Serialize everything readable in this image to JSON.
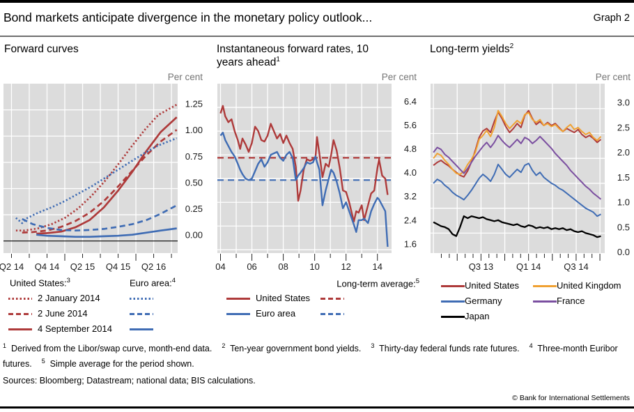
{
  "header": {
    "title": "Bond markets anticipate divergence in the monetary policy outlook...",
    "graph_label": "Graph 2"
  },
  "panels": [
    {
      "title": "Forward curves",
      "title_sup": "",
      "unit": "Per cent"
    },
    {
      "title": "Instantaneous forward rates, 10 years ahead",
      "title_sup": "1",
      "unit": "Per cent"
    },
    {
      "title": "Long-term yields",
      "title_sup": "2",
      "unit": "Per cent"
    }
  ],
  "legends": {
    "panel1": {
      "col1_header": "United States:",
      "col1_sup": "3",
      "col2_header": "Euro area:",
      "col2_sup": "4",
      "items": [
        "2 January 2014",
        "2 June 2014",
        "4 September 2014"
      ]
    },
    "panel2": {
      "avg_header": "Long-term average:",
      "avg_sup": "5",
      "items": [
        "United States",
        "Euro area"
      ]
    },
    "panel3": {
      "items": [
        "United States",
        "United Kingdom",
        "Germany",
        "France",
        "Japan"
      ]
    }
  },
  "footnotes": [
    {
      "sup": "1",
      "text": "Derived from the Libor/swap curve, month-end data."
    },
    {
      "sup": "2",
      "text": "Ten-year government bond yields."
    },
    {
      "sup": "3",
      "text": "Thirty-day federal funds rate futures."
    },
    {
      "sup": "4",
      "text": "Three-month Euribor futures."
    },
    {
      "sup": "5",
      "text": "Simple average for the period shown."
    }
  ],
  "sources": "Sources: Bloomberg; Datastream; national data; BIS calculations.",
  "copyright": "© Bank for International Settlements",
  "colors": {
    "us_red": "#ae3a3a",
    "eu_blue": "#3f6cb4",
    "uk_orange": "#f0a132",
    "fr_purple": "#7b4fa0",
    "jp_black": "#000000",
    "plot_bg": "#dcdcdc",
    "grid": "#ffffff"
  },
  "chart_data": [
    {
      "type": "line",
      "title": "Forward curves",
      "ylabel": "Per cent",
      "ylim": [
        -0.115,
        1.5
      ],
      "yticks": [
        0.0,
        0.25,
        0.5,
        0.75,
        1.0,
        1.25
      ],
      "ytick_decimals": 2,
      "zero_line": 0.0,
      "xlim": [
        -0.45,
        9.35
      ],
      "xgrid": [
        0,
        1,
        2,
        3,
        4,
        5,
        6,
        7,
        8,
        9
      ],
      "xticks": {
        "start": 0,
        "step": 1,
        "count": 10,
        "long": [
          3,
          7
        ]
      },
      "xtick_labels": [
        {
          "pos": 0,
          "text": "Q2 14"
        },
        {
          "pos": 2,
          "text": "Q4 14"
        },
        {
          "pos": 4,
          "text": "Q2 15"
        },
        {
          "pos": 6,
          "text": "Q4 15"
        },
        {
          "pos": 8,
          "text": "Q2 16"
        }
      ],
      "stroke_w": 2.7,
      "series": [
        {
          "name": "United States — 2 January 2014",
          "color": "us_red",
          "dash": "dotted",
          "x": [
            0.25,
            0.75,
            1.5,
            2.25,
            3,
            3.75,
            4.5,
            5.25,
            6,
            6.75,
            7.5,
            8.25,
            9.3
          ],
          "y": [
            0.1,
            0.1,
            0.12,
            0.16,
            0.22,
            0.31,
            0.43,
            0.57,
            0.73,
            0.9,
            1.06,
            1.2,
            1.3
          ]
        },
        {
          "name": "United States — 2 June 2014",
          "color": "us_red",
          "dash": "dashed",
          "x": [
            0.6,
            1.2,
            2,
            2.8,
            3.6,
            4.4,
            5.2,
            6,
            6.8,
            7.6,
            8.4,
            9.3
          ],
          "y": [
            0.08,
            0.085,
            0.1,
            0.135,
            0.19,
            0.27,
            0.38,
            0.52,
            0.67,
            0.82,
            0.95,
            1.06
          ]
        },
        {
          "name": "United States — 4 September 2014",
          "color": "us_red",
          "dash": "solid",
          "x": [
            1.4,
            2,
            2.8,
            3.6,
            4.4,
            5.2,
            6,
            6.8,
            7.6,
            8.4,
            9.3
          ],
          "y": [
            0.07,
            0.075,
            0.09,
            0.13,
            0.2,
            0.32,
            0.48,
            0.66,
            0.86,
            1.04,
            1.18
          ]
        },
        {
          "name": "Euro area — 2 January 2014",
          "color": "eu_blue",
          "dash": "dotted",
          "x": [
            0.25,
            0.6,
            0.9,
            1.5,
            2.25,
            3,
            3.75,
            4.5,
            5.25,
            6,
            6.75,
            7.5,
            8.25,
            9.3
          ],
          "y": [
            0.22,
            0.17,
            0.22,
            0.27,
            0.32,
            0.38,
            0.45,
            0.52,
            0.6,
            0.68,
            0.76,
            0.84,
            0.91,
            0.98
          ]
        },
        {
          "name": "Euro area — 2 June 2014",
          "color": "eu_blue",
          "dash": "dashed",
          "x": [
            0.6,
            1.2,
            2,
            2.8,
            3.6,
            4.4,
            5.2,
            6,
            6.8,
            7.6,
            8.4,
            9.3
          ],
          "y": [
            0.21,
            0.16,
            0.125,
            0.105,
            0.1,
            0.105,
            0.115,
            0.135,
            0.16,
            0.2,
            0.26,
            0.34
          ]
        },
        {
          "name": "Euro area — 4 September 2014",
          "color": "eu_blue",
          "dash": "solid",
          "x": [
            1.4,
            2,
            2.8,
            3.6,
            4.4,
            5.2,
            6,
            6.8,
            7.6,
            8.4,
            9.3
          ],
          "y": [
            0.06,
            0.05,
            0.045,
            0.04,
            0.04,
            0.045,
            0.05,
            0.06,
            0.08,
            0.1,
            0.12
          ]
        }
      ]
    },
    {
      "type": "line",
      "title": "Instantaneous forward rates, 10 years ahead",
      "ylabel": "Per cent",
      "ylim": [
        1.49,
        7.2
      ],
      "yticks": [
        1.6,
        2.4,
        3.2,
        4.0,
        4.8,
        5.6,
        6.4
      ],
      "ytick_decimals": 1,
      "xlim": [
        2003.8,
        2014.9
      ],
      "xgrid": [
        2004,
        2005,
        2006,
        2007,
        2008,
        2009,
        2010,
        2011,
        2012,
        2013,
        2014
      ],
      "xticks": {
        "start": 2004,
        "step": 1,
        "count": 11,
        "long": [
          2004,
          2006,
          2008,
          2010,
          2012,
          2014
        ]
      },
      "xtick_labels": [
        {
          "pos": 2004,
          "text": "04"
        },
        {
          "pos": 2006,
          "text": "06"
        },
        {
          "pos": 2008,
          "text": "08"
        },
        {
          "pos": 2010,
          "text": "10"
        },
        {
          "pos": 2012,
          "text": "12"
        },
        {
          "pos": 2014,
          "text": "14"
        }
      ],
      "stroke_w": 2.4,
      "hlines": [
        {
          "name": "Long-term average — United States",
          "y": 4.7,
          "color": "us_red"
        },
        {
          "name": "Long-term average — Euro area",
          "y": 3.95,
          "color": "eu_blue"
        }
      ],
      "x": [
        2004.0,
        2004.15,
        2004.3,
        2004.5,
        2004.7,
        2004.9,
        2005.1,
        2005.25,
        2005.4,
        2005.6,
        2005.8,
        2006.0,
        2006.2,
        2006.4,
        2006.6,
        2006.8,
        2007.0,
        2007.2,
        2007.4,
        2007.6,
        2007.8,
        2008.0,
        2008.2,
        2008.4,
        2008.6,
        2008.8,
        2008.95,
        2009.1,
        2009.3,
        2009.5,
        2009.7,
        2009.9,
        2010.05,
        2010.15,
        2010.3,
        2010.5,
        2010.7,
        2010.9,
        2011.05,
        2011.2,
        2011.4,
        2011.6,
        2011.8,
        2012.0,
        2012.2,
        2012.5,
        2012.65,
        2012.8,
        2013.0,
        2013.15,
        2013.4,
        2013.6,
        2013.8,
        2014.0,
        2014.1,
        2014.3,
        2014.5,
        2014.65
      ],
      "series": [
        {
          "name": "United States",
          "color": "us_red",
          "dash": "solid",
          "y": [
            6.2,
            6.45,
            6.1,
            5.9,
            6.0,
            5.6,
            5.3,
            5.0,
            5.35,
            5.15,
            4.9,
            5.2,
            5.75,
            5.6,
            5.3,
            5.25,
            5.45,
            5.85,
            5.6,
            5.35,
            5.5,
            5.2,
            5.45,
            5.2,
            5.0,
            4.4,
            3.25,
            3.6,
            4.3,
            4.65,
            4.6,
            4.65,
            4.7,
            5.4,
            4.85,
            4.05,
            4.5,
            4.4,
            4.8,
            5.3,
            4.95,
            4.35,
            3.6,
            3.55,
            3.2,
            2.55,
            2.9,
            2.85,
            3.1,
            2.6,
            3.1,
            3.5,
            3.6,
            4.35,
            4.65,
            4.1,
            4.0,
            3.45
          ]
        },
        {
          "name": "Euro area",
          "color": "eu_blue",
          "dash": "solid",
          "y": [
            5.45,
            5.55,
            5.3,
            5.1,
            4.9,
            4.75,
            4.5,
            4.3,
            4.15,
            4.0,
            3.95,
            4.0,
            4.25,
            4.5,
            4.65,
            4.4,
            4.55,
            4.8,
            4.85,
            4.9,
            4.7,
            4.6,
            4.8,
            4.9,
            4.7,
            3.95,
            4.1,
            4.2,
            4.35,
            4.55,
            4.5,
            4.55,
            4.75,
            4.55,
            4.3,
            3.1,
            3.6,
            4.0,
            4.3,
            4.2,
            3.9,
            3.5,
            3.0,
            3.2,
            2.9,
            2.45,
            2.2,
            2.6,
            2.6,
            2.65,
            2.5,
            2.9,
            3.15,
            3.35,
            3.3,
            3.1,
            2.9,
            1.7
          ]
        }
      ]
    },
    {
      "type": "line",
      "title": "Long-term yields",
      "ylabel": "Per cent",
      "ylim": [
        0.1,
        3.5
      ],
      "yticks": [
        0.0,
        0.5,
        1.0,
        1.5,
        2.0,
        2.5,
        3.0
      ],
      "ytick_decimals": 1,
      "xlim": [
        2012.97,
        2014.8
      ],
      "xgrid": [
        2013.0,
        2013.25,
        2013.5,
        2013.75,
        2014.0,
        2014.25,
        2014.5,
        2014.75
      ],
      "xticks": {
        "start": 2013.0833,
        "step": 0.0833,
        "count": 21,
        "long": [
          2013.25,
          2013.5,
          2013.75,
          2014.0,
          2014.25,
          2014.5,
          2014.75
        ]
      },
      "xtick_labels": [
        {
          "pos": 2013.5,
          "text": "Q3 13"
        },
        {
          "pos": 2014.0,
          "text": "Q1 14"
        },
        {
          "pos": 2014.5,
          "text": "Q3 14"
        }
      ],
      "stroke_w": 2.0,
      "x": [
        2013.0,
        2013.04,
        2013.08,
        2013.12,
        2013.16,
        2013.2,
        2013.24,
        2013.28,
        2013.32,
        2013.36,
        2013.4,
        2013.44,
        2013.48,
        2013.52,
        2013.56,
        2013.6,
        2013.64,
        2013.68,
        2013.72,
        2013.76,
        2013.8,
        2013.84,
        2013.88,
        2013.92,
        2013.96,
        2014.0,
        2014.04,
        2014.08,
        2014.12,
        2014.16,
        2014.2,
        2014.24,
        2014.28,
        2014.32,
        2014.36,
        2014.4,
        2014.44,
        2014.48,
        2014.52,
        2014.56,
        2014.6,
        2014.64,
        2014.68,
        2014.72,
        2014.76
      ],
      "series": [
        {
          "name": "United States",
          "color": "us_red",
          "dash": "solid",
          "y": [
            1.86,
            1.92,
            1.96,
            1.9,
            1.85,
            1.78,
            1.72,
            1.66,
            1.63,
            1.75,
            1.93,
            2.16,
            2.42,
            2.55,
            2.6,
            2.52,
            2.74,
            2.93,
            2.8,
            2.64,
            2.52,
            2.6,
            2.7,
            2.62,
            2.86,
            2.96,
            2.8,
            2.68,
            2.74,
            2.66,
            2.72,
            2.66,
            2.7,
            2.62,
            2.54,
            2.6,
            2.56,
            2.52,
            2.58,
            2.48,
            2.42,
            2.46,
            2.4,
            2.32,
            2.38
          ]
        },
        {
          "name": "United Kingdom",
          "color": "uk_orange",
          "dash": "solid",
          "y": [
            2.0,
            2.1,
            2.06,
            1.96,
            1.88,
            1.78,
            1.7,
            1.68,
            1.74,
            1.88,
            1.98,
            2.12,
            2.38,
            2.46,
            2.56,
            2.44,
            2.62,
            2.96,
            2.84,
            2.7,
            2.6,
            2.68,
            2.76,
            2.7,
            2.88,
            2.92,
            2.78,
            2.72,
            2.78,
            2.66,
            2.7,
            2.64,
            2.68,
            2.6,
            2.54,
            2.62,
            2.68,
            2.58,
            2.62,
            2.54,
            2.48,
            2.52,
            2.42,
            2.36,
            2.44
          ]
        },
        {
          "name": "France",
          "color": "fr_purple",
          "dash": "solid",
          "y": [
            2.12,
            2.22,
            2.18,
            2.08,
            2.02,
            1.94,
            1.86,
            1.78,
            1.7,
            1.8,
            1.92,
            2.04,
            2.14,
            2.24,
            2.32,
            2.22,
            2.32,
            2.46,
            2.36,
            2.28,
            2.22,
            2.3,
            2.38,
            2.3,
            2.42,
            2.38,
            2.3,
            2.36,
            2.44,
            2.36,
            2.28,
            2.2,
            2.1,
            2.02,
            1.94,
            1.86,
            1.76,
            1.68,
            1.6,
            1.52,
            1.44,
            1.38,
            1.3,
            1.24,
            1.18
          ]
        },
        {
          "name": "Germany",
          "color": "eu_blue",
          "dash": "solid",
          "y": [
            1.5,
            1.58,
            1.54,
            1.46,
            1.4,
            1.32,
            1.26,
            1.22,
            1.17,
            1.26,
            1.36,
            1.48,
            1.6,
            1.68,
            1.62,
            1.54,
            1.68,
            1.88,
            1.78,
            1.68,
            1.62,
            1.7,
            1.78,
            1.72,
            1.86,
            1.9,
            1.76,
            1.66,
            1.72,
            1.62,
            1.56,
            1.5,
            1.46,
            1.4,
            1.36,
            1.3,
            1.24,
            1.18,
            1.12,
            1.06,
            1.0,
            0.96,
            0.92,
            0.84,
            0.88
          ]
        },
        {
          "name": "Japan",
          "color": "jp_black",
          "dash": "solid",
          "w": 2.3,
          "y": [
            0.72,
            0.68,
            0.64,
            0.62,
            0.58,
            0.48,
            0.44,
            0.62,
            0.84,
            0.8,
            0.84,
            0.82,
            0.8,
            0.82,
            0.78,
            0.76,
            0.74,
            0.76,
            0.72,
            0.7,
            0.68,
            0.66,
            0.68,
            0.64,
            0.62,
            0.66,
            0.64,
            0.6,
            0.62,
            0.6,
            0.62,
            0.58,
            0.6,
            0.58,
            0.6,
            0.56,
            0.58,
            0.54,
            0.52,
            0.54,
            0.5,
            0.48,
            0.46,
            0.42,
            0.44
          ]
        }
      ]
    }
  ]
}
